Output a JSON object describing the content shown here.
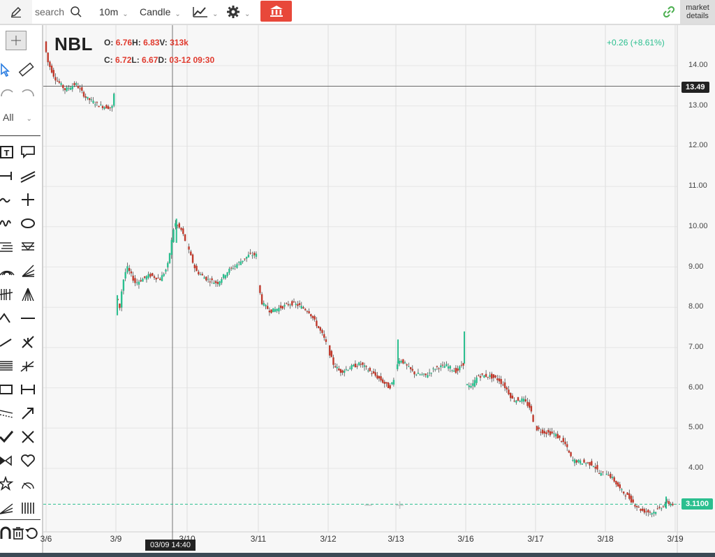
{
  "toolbar": {
    "search_placeholder": "search",
    "interval": "10m",
    "chart_type": "Candle",
    "market_details": [
      "market",
      "details"
    ]
  },
  "sidebar": {
    "filter_label": "All"
  },
  "legend": {
    "symbol": "NBL",
    "open_label": "O:",
    "open": "6.76",
    "high_label": "H:",
    "high": "6.83",
    "volume_label": "V:",
    "volume": "313k",
    "close_label": "C:",
    "close": "6.72",
    "low_label": "L:",
    "low": "6.67",
    "date_label": "D:",
    "date": "03-12 09:30"
  },
  "change": "+0.26 (+8.61%)",
  "crosshair": {
    "price": "13.49",
    "time": "03/09 14:40"
  },
  "last_price": "3.1100",
  "colors": {
    "up": "#2bbf8f",
    "down": "#c0392b",
    "accent": "#e8483a",
    "link": "#4caf50"
  },
  "chart_data": {
    "type": "candlestick",
    "title": "NBL",
    "interval": "10m",
    "y_ticks": [
      "14.00",
      "13.00",
      "12.00",
      "11.00",
      "10.00",
      "9.00",
      "8.00",
      "7.00",
      "6.00",
      "5.00",
      "4.00"
    ],
    "x_ticks": [
      "3/6",
      "3/9",
      "3/10",
      "3/11",
      "3/12",
      "3/13",
      "3/16",
      "3/17",
      "3/18",
      "3/19"
    ],
    "ylim": [
      2.75,
      14.9
    ],
    "grid": true,
    "price_path": [
      [
        0,
        14.6
      ],
      [
        0.05,
        14.1
      ],
      [
        0.15,
        13.7
      ],
      [
        0.3,
        13.4
      ],
      [
        0.45,
        13.55
      ],
      [
        0.6,
        13.2
      ],
      [
        0.8,
        13.0
      ],
      [
        0.97,
        12.95
      ],
      [
        1.0,
        13.3
      ],
      [
        1.02,
        8.3
      ],
      [
        1.08,
        8.0
      ],
      [
        1.12,
        8.6
      ],
      [
        1.18,
        9.0
      ],
      [
        1.3,
        8.6
      ],
      [
        1.5,
        8.8
      ],
      [
        1.65,
        8.7
      ],
      [
        1.75,
        9.0
      ],
      [
        1.85,
        10.1
      ],
      [
        1.95,
        9.9
      ],
      [
        2.05,
        9.4
      ],
      [
        2.15,
        8.9
      ],
      [
        2.3,
        8.7
      ],
      [
        2.45,
        8.6
      ],
      [
        2.6,
        8.9
      ],
      [
        2.75,
        9.1
      ],
      [
        2.9,
        9.3
      ],
      [
        3.0,
        9.3
      ],
      [
        3.02,
        8.6
      ],
      [
        3.08,
        8.1
      ],
      [
        3.2,
        7.9
      ],
      [
        3.35,
        8.0
      ],
      [
        3.5,
        8.1
      ],
      [
        3.6,
        8.05
      ],
      [
        3.75,
        7.9
      ],
      [
        3.85,
        7.6
      ],
      [
        3.95,
        7.3
      ],
      [
        4.02,
        7.0
      ],
      [
        4.1,
        6.6
      ],
      [
        4.2,
        6.4
      ],
      [
        4.35,
        6.5
      ],
      [
        4.5,
        6.6
      ],
      [
        4.65,
        6.4
      ],
      [
        4.8,
        6.2
      ],
      [
        4.93,
        6.0
      ],
      [
        5.0,
        6.2
      ],
      [
        5.03,
        6.6
      ],
      [
        5.1,
        6.7
      ],
      [
        5.2,
        6.5
      ],
      [
        5.3,
        6.35
      ],
      [
        5.45,
        6.3
      ],
      [
        5.6,
        6.5
      ],
      [
        5.75,
        6.55
      ],
      [
        5.9,
        6.4
      ],
      [
        5.98,
        6.6
      ],
      [
        6.0,
        6.6
      ],
      [
        6.02,
        6.1
      ],
      [
        6.1,
        6.0
      ],
      [
        6.2,
        6.3
      ],
      [
        6.35,
        6.3
      ],
      [
        6.5,
        6.2
      ],
      [
        6.6,
        6.0
      ],
      [
        6.7,
        5.7
      ],
      [
        6.85,
        5.7
      ],
      [
        6.95,
        5.5
      ],
      [
        7.02,
        5.0
      ],
      [
        7.15,
        4.9
      ],
      [
        7.3,
        4.85
      ],
      [
        7.45,
        4.6
      ],
      [
        7.55,
        4.2
      ],
      [
        7.7,
        4.15
      ],
      [
        7.85,
        4.1
      ],
      [
        7.95,
        3.85
      ],
      [
        8.05,
        3.9
      ],
      [
        8.15,
        3.7
      ],
      [
        8.25,
        3.45
      ],
      [
        8.35,
        3.3
      ],
      [
        8.45,
        3.1
      ],
      [
        8.55,
        2.95
      ],
      [
        8.7,
        2.9
      ],
      [
        8.8,
        3.0
      ],
      [
        8.9,
        3.15
      ],
      [
        8.98,
        3.11
      ]
    ],
    "big_wicks": [
      [
        1.02,
        8.3,
        7.8
      ],
      [
        1.85,
        10.2,
        9.6
      ],
      [
        5.03,
        7.2,
        6.6
      ],
      [
        5.98,
        7.4,
        6.6
      ],
      [
        8.87,
        3.3,
        3.0
      ]
    ],
    "volume_label": "313k"
  }
}
